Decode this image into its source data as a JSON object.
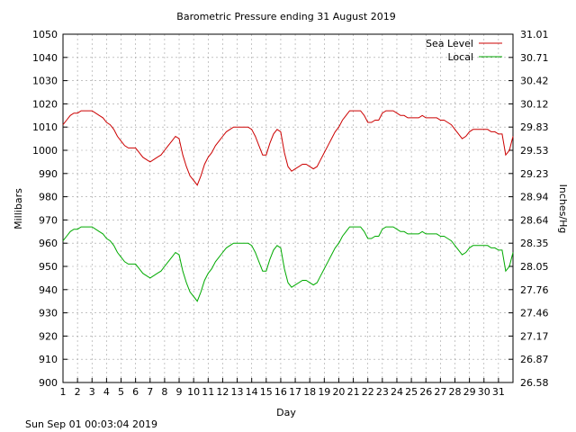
{
  "chart_data": {
    "type": "line",
    "title": "Barometric Pressure ending 31 August 2019",
    "xlabel": "Day",
    "ylabel": "Millibars",
    "y2label": "Inches/Hg",
    "xlim": [
      1,
      32
    ],
    "ylim": [
      900,
      1050
    ],
    "x_ticks": [
      1,
      2,
      3,
      4,
      5,
      6,
      7,
      8,
      9,
      10,
      11,
      12,
      13,
      14,
      15,
      16,
      17,
      18,
      19,
      20,
      21,
      22,
      23,
      24,
      25,
      26,
      27,
      28,
      29,
      30,
      31
    ],
    "y_ticks": [
      900,
      910,
      920,
      930,
      940,
      950,
      960,
      970,
      980,
      990,
      1000,
      1010,
      1020,
      1030,
      1040,
      1050
    ],
    "y2_ticks": [
      "26.58",
      "26.87",
      "27.17",
      "27.46",
      "27.76",
      "28.05",
      "28.35",
      "28.64",
      "28.94",
      "29.23",
      "29.53",
      "29.83",
      "30.12",
      "30.42",
      "30.71",
      "31.01"
    ],
    "grid": true,
    "legend_position": "top-right",
    "colors": {
      "sea_level": "#cc0000",
      "local": "#00aa00"
    },
    "series": [
      {
        "name": "Sea Level",
        "x": [
          1,
          1.25,
          1.5,
          1.75,
          2,
          2.25,
          2.5,
          2.75,
          3,
          3.25,
          3.5,
          3.75,
          4,
          4.25,
          4.5,
          4.75,
          5,
          5.25,
          5.5,
          5.75,
          6,
          6.25,
          6.5,
          6.75,
          7,
          7.25,
          7.5,
          7.75,
          8,
          8.25,
          8.5,
          8.75,
          9,
          9.25,
          9.5,
          9.75,
          10,
          10.25,
          10.5,
          10.75,
          11,
          11.25,
          11.5,
          11.75,
          12,
          12.25,
          12.5,
          12.75,
          13,
          13.25,
          13.5,
          13.75,
          14,
          14.25,
          14.5,
          14.75,
          15,
          15.25,
          15.5,
          15.75,
          16,
          16.25,
          16.5,
          16.75,
          17,
          17.25,
          17.5,
          17.75,
          18,
          18.25,
          18.5,
          18.75,
          19,
          19.25,
          19.5,
          19.75,
          20,
          20.25,
          20.5,
          20.75,
          21,
          21.25,
          21.5,
          21.75,
          22,
          22.25,
          22.5,
          22.75,
          23,
          23.25,
          23.5,
          23.75,
          24,
          24.25,
          24.5,
          24.75,
          25,
          25.25,
          25.5,
          25.75,
          26,
          26.25,
          26.5,
          26.75,
          27,
          27.25,
          27.5,
          27.75,
          28,
          28.25,
          28.5,
          28.75,
          29,
          29.25,
          29.5,
          29.75,
          30,
          30.25,
          30.5,
          30.75,
          31,
          31.25,
          31.5,
          31.75,
          32
        ],
        "values": [
          1011,
          1013,
          1015,
          1016,
          1016,
          1017,
          1017,
          1017,
          1017,
          1016,
          1015,
          1014,
          1012,
          1011,
          1009,
          1006,
          1004,
          1002,
          1001,
          1001,
          1001,
          999,
          997,
          996,
          995,
          996,
          997,
          998,
          1000,
          1002,
          1004,
          1006,
          1005,
          998,
          993,
          989,
          987,
          985,
          989,
          994,
          997,
          999,
          1002,
          1004,
          1006,
          1008,
          1009,
          1010,
          1010,
          1010,
          1010,
          1010,
          1009,
          1006,
          1002,
          998,
          998,
          1003,
          1007,
          1009,
          1008,
          999,
          993,
          991,
          992,
          993,
          994,
          994,
          993,
          992,
          993,
          996,
          999,
          1002,
          1005,
          1008,
          1010,
          1013,
          1015,
          1017,
          1017,
          1017,
          1017,
          1015,
          1012,
          1012,
          1013,
          1013,
          1016,
          1017,
          1017,
          1017,
          1016,
          1015,
          1015,
          1014,
          1014,
          1014,
          1014,
          1015,
          1014,
          1014,
          1014,
          1014,
          1013,
          1013,
          1012,
          1011,
          1009,
          1007,
          1005,
          1006,
          1008,
          1009,
          1009,
          1009,
          1009,
          1009,
          1008,
          1008,
          1007,
          1007,
          998,
          1000,
          1006
        ]
      },
      {
        "name": "Local",
        "x": [
          1,
          1.25,
          1.5,
          1.75,
          2,
          2.25,
          2.5,
          2.75,
          3,
          3.25,
          3.5,
          3.75,
          4,
          4.25,
          4.5,
          4.75,
          5,
          5.25,
          5.5,
          5.75,
          6,
          6.25,
          6.5,
          6.75,
          7,
          7.25,
          7.5,
          7.75,
          8,
          8.25,
          8.5,
          8.75,
          9,
          9.25,
          9.5,
          9.75,
          10,
          10.25,
          10.5,
          10.75,
          11,
          11.25,
          11.5,
          11.75,
          12,
          12.25,
          12.5,
          12.75,
          13,
          13.25,
          13.5,
          13.75,
          14,
          14.25,
          14.5,
          14.75,
          15,
          15.25,
          15.5,
          15.75,
          16,
          16.25,
          16.5,
          16.75,
          17,
          17.25,
          17.5,
          17.75,
          18,
          18.25,
          18.5,
          18.75,
          19,
          19.25,
          19.5,
          19.75,
          20,
          20.25,
          20.5,
          20.75,
          21,
          21.25,
          21.5,
          21.75,
          22,
          22.25,
          22.5,
          22.75,
          23,
          23.25,
          23.5,
          23.75,
          24,
          24.25,
          24.5,
          24.75,
          25,
          25.25,
          25.5,
          25.75,
          26,
          26.25,
          26.5,
          26.75,
          27,
          27.25,
          27.5,
          27.75,
          28,
          28.25,
          28.5,
          28.75,
          29,
          29.25,
          29.5,
          29.75,
          30,
          30.25,
          30.5,
          30.75,
          31,
          31.25,
          31.5,
          31.75,
          32
        ],
        "values": [
          961,
          963,
          965,
          966,
          966,
          967,
          967,
          967,
          967,
          966,
          965,
          964,
          962,
          961,
          959,
          956,
          954,
          952,
          951,
          951,
          951,
          949,
          947,
          946,
          945,
          946,
          947,
          948,
          950,
          952,
          954,
          956,
          955,
          948,
          943,
          939,
          937,
          935,
          939,
          944,
          947,
          949,
          952,
          954,
          956,
          958,
          959,
          960,
          960,
          960,
          960,
          960,
          959,
          956,
          952,
          948,
          948,
          953,
          957,
          959,
          958,
          949,
          943,
          941,
          942,
          943,
          944,
          944,
          943,
          942,
          943,
          946,
          949,
          952,
          955,
          958,
          960,
          963,
          965,
          967,
          967,
          967,
          967,
          965,
          962,
          962,
          963,
          963,
          966,
          967,
          967,
          967,
          966,
          965,
          965,
          964,
          964,
          964,
          964,
          965,
          964,
          964,
          964,
          964,
          963,
          963,
          962,
          961,
          959,
          957,
          955,
          956,
          958,
          959,
          959,
          959,
          959,
          959,
          958,
          958,
          957,
          957,
          948,
          950,
          956
        ]
      }
    ]
  },
  "footer": {
    "timestamp": "Sun Sep 01 00:03:04 2019"
  }
}
